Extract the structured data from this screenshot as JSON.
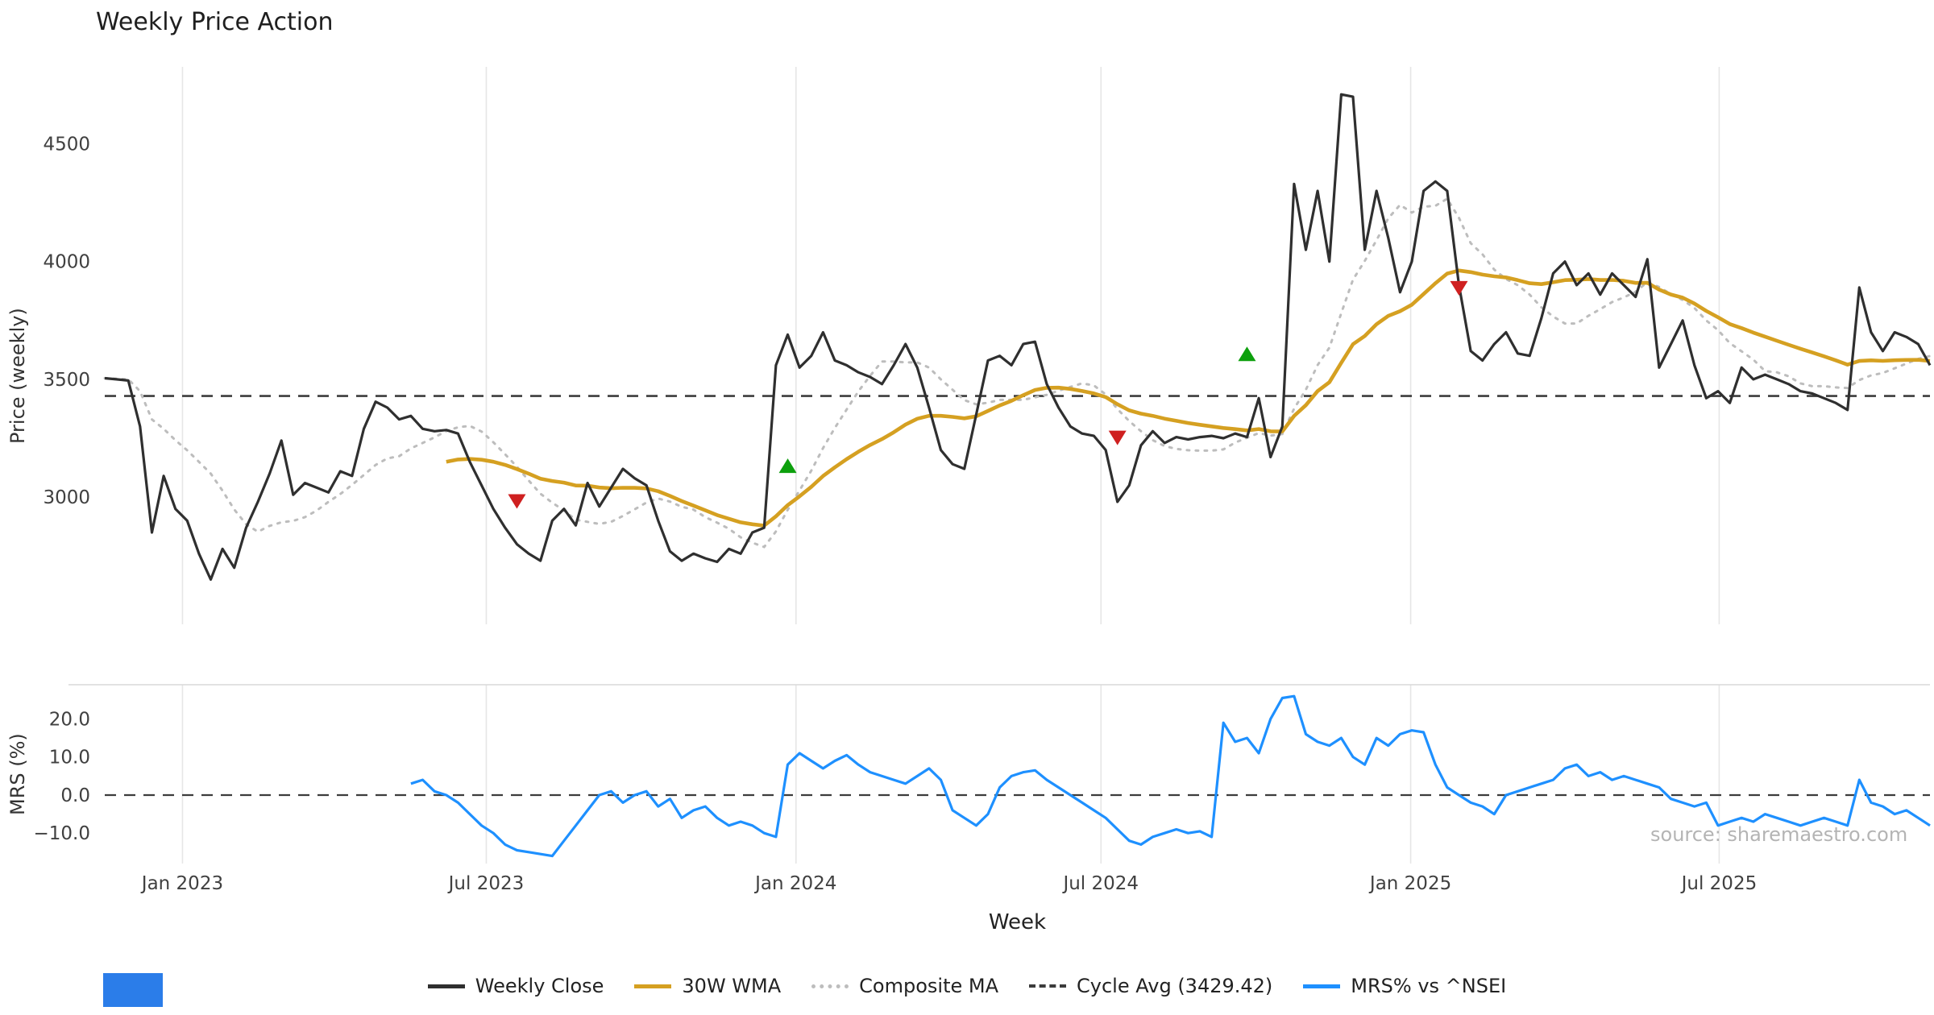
{
  "title": "Weekly Price Action",
  "source_text": "source: sharemaestro.com",
  "axes": {
    "price_label": "Price (weekly)",
    "mrs_label": "MRS (%)",
    "x_label": "Week",
    "price_ticks": [
      {
        "value": 3000,
        "label": "3000"
      },
      {
        "value": 3500,
        "label": "3500"
      },
      {
        "value": 4000,
        "label": "4000"
      },
      {
        "value": 4500,
        "label": "4500"
      }
    ],
    "mrs_ticks": [
      {
        "value": -10,
        "label": "−10.0"
      },
      {
        "value": 0,
        "label": "0.0"
      },
      {
        "value": 10,
        "label": "10.0"
      },
      {
        "value": 20,
        "label": "20.0"
      }
    ],
    "x_ticks": [
      {
        "week_index": 6.6,
        "label": "Jan 2023"
      },
      {
        "week_index": 32.4,
        "label": "Jul 2023"
      },
      {
        "week_index": 58.7,
        "label": "Jan 2024"
      },
      {
        "week_index": 84.6,
        "label": "Jul 2024"
      },
      {
        "week_index": 110.9,
        "label": "Jan 2025"
      },
      {
        "week_index": 137.1,
        "label": "Jul 2025"
      }
    ]
  },
  "legend": [
    {
      "label": "Weekly Close",
      "color": "#2f2f2f",
      "style": "solid"
    },
    {
      "label": "30W WMA",
      "color": "#d5a021",
      "style": "solid"
    },
    {
      "label": "Composite MA",
      "color": "#bdbdbd",
      "style": "dotted"
    },
    {
      "label": "Cycle Avg (3429.42)",
      "color": "#3c3c3c",
      "style": "dashed"
    },
    {
      "label": "MRS% vs ^NSEI",
      "color": "#1e90ff",
      "style": "solid"
    }
  ],
  "colors": {
    "weekly_close": "#2f2f2f",
    "wma_30w": "#d5a021",
    "composite_ma": "#bdbdbd",
    "cycle_avg": "#3c3c3c",
    "mrs": "#1e90ff",
    "buy_signal": "#0da00d",
    "sell_signal": "#cf2020",
    "grid": "#e6e6e6",
    "panel_border": "#d9d9d9",
    "tick_text": "#404040",
    "brand_blue": "#2b7de9"
  },
  "chart_data": {
    "type": "line",
    "x_unit": "week",
    "x_range_note": "weekly data, mid-Nov 2022 through late Oct 2025, 156 weekly points",
    "price_panel": {
      "ylim": [
        2460,
        4820
      ],
      "series": [
        {
          "name": "Weekly Close",
          "values": [
            3505,
            3500,
            3495,
            3300,
            2850,
            3090,
            2950,
            2900,
            2760,
            2650,
            2780,
            2700,
            2870,
            2980,
            3100,
            3240,
            3010,
            3060,
            3040,
            3020,
            3110,
            3090,
            3290,
            3405,
            3380,
            3330,
            3345,
            3290,
            3280,
            3285,
            3270,
            3150,
            3050,
            2950,
            2870,
            2800,
            2760,
            2730,
            2900,
            2950,
            2880,
            3060,
            2960,
            3040,
            3120,
            3080,
            3050,
            2900,
            2770,
            2730,
            2760,
            2740,
            2725,
            2780,
            2760,
            2850,
            2870,
            3560,
            3690,
            3550,
            3600,
            3700,
            3580,
            3560,
            3530,
            3510,
            3480,
            3560,
            3650,
            3550,
            3380,
            3200,
            3140,
            3120,
            3350,
            3580,
            3600,
            3560,
            3650,
            3660,
            3480,
            3380,
            3300,
            3270,
            3260,
            3200,
            2980,
            3050,
            3220,
            3280,
            3230,
            3255,
            3245,
            3255,
            3260,
            3250,
            3270,
            3255,
            3420,
            3170,
            3300,
            4330,
            4050,
            4300,
            4000,
            4710,
            4700,
            4050,
            4300,
            4100,
            3870,
            4000,
            4300,
            4340,
            4300,
            3900,
            3620,
            3580,
            3650,
            3700,
            3610,
            3600,
            3760,
            3950,
            4000,
            3900,
            3950,
            3860,
            3950,
            3900,
            3850,
            4010,
            3550,
            3650,
            3750,
            3560,
            3420,
            3450,
            3400,
            3550,
            3500,
            3520,
            3500,
            3480,
            3450,
            3440,
            3420,
            3400,
            3370,
            3890,
            3700,
            3620,
            3700,
            3680,
            3650,
            3560
          ]
        },
        {
          "name": "30W WMA",
          "derived": {
            "from": "Weekly Close",
            "method": "weighted_moving_average",
            "window": 30
          }
        },
        {
          "name": "Composite MA",
          "derived": {
            "from": "Weekly Close",
            "method": "moving_average_blend",
            "window": 10
          }
        },
        {
          "name": "Cycle Avg",
          "value": 3429.42
        }
      ],
      "signals": {
        "buy": [
          {
            "week_index": 58,
            "price": 3130
          },
          {
            "week_index": 97,
            "price": 3605
          }
        ],
        "sell": [
          {
            "week_index": 35,
            "price": 2985
          },
          {
            "week_index": 86,
            "price": 3255
          },
          {
            "week_index": 115,
            "price": 3890
          }
        ]
      }
    },
    "mrs_panel": {
      "ylim": [
        -18,
        29
      ],
      "zero_line": 0,
      "series": [
        {
          "name": "MRS% vs ^NSEI",
          "start_week_index": 26,
          "values": [
            3,
            4,
            1,
            0,
            -2,
            -5,
            -8,
            -10,
            -13,
            -14.5,
            -15,
            -15.5,
            -16,
            -12,
            -8,
            -4,
            0,
            1,
            -2,
            0,
            1,
            -3,
            -1,
            -6,
            -4,
            -3,
            -6,
            -8,
            -7,
            -8,
            -10,
            -11,
            8,
            11,
            9,
            7,
            9,
            10.5,
            8,
            6,
            5,
            4,
            3,
            5,
            7,
            4,
            -4,
            -6,
            -8,
            -5,
            2,
            5,
            6,
            6.5,
            4,
            2,
            0,
            -2,
            -4,
            -6,
            -9,
            -12,
            -13,
            -11,
            -10,
            -9,
            -10,
            -9.5,
            -11,
            19,
            14,
            15,
            11,
            20,
            25.5,
            26,
            16,
            14,
            13,
            15,
            10,
            8,
            15,
            13,
            16,
            17,
            16.5,
            8,
            2,
            0,
            -2,
            -3,
            -5,
            0,
            1,
            2,
            3,
            4,
            7,
            8,
            5,
            6,
            4,
            5,
            4,
            3,
            2,
            -1,
            -2,
            -3,
            -2,
            -8,
            -7,
            -6,
            -7,
            -5,
            -6,
            -7,
            -8,
            -7,
            -6,
            -7,
            -8,
            4,
            -2,
            -3,
            -5,
            -4,
            -6,
            -8
          ]
        }
      ]
    }
  }
}
